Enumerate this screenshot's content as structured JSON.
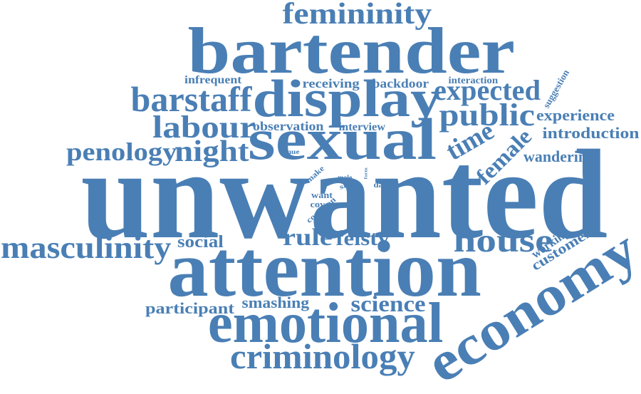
{
  "word_color": "#4a7fb5",
  "words": [
    {
      "id": "unwanted",
      "text": "unwanted"
    },
    {
      "id": "attention",
      "text": "attention"
    },
    {
      "id": "bartender",
      "text": "bartender"
    },
    {
      "id": "sexual",
      "text": "sexual"
    },
    {
      "id": "display",
      "text": "display"
    },
    {
      "id": "emotional",
      "text": "emotional"
    },
    {
      "id": "economy",
      "text": "economy"
    },
    {
      "id": "femininity",
      "text": "femininity"
    },
    {
      "id": "barstaff",
      "text": "barstaff"
    },
    {
      "id": "labour",
      "text": "labour"
    },
    {
      "id": "public",
      "text": "public"
    },
    {
      "id": "expected",
      "text": "expected"
    },
    {
      "id": "house",
      "text": "house"
    },
    {
      "id": "masculinity",
      "text": "masculinity"
    },
    {
      "id": "criminology",
      "text": "criminology"
    },
    {
      "id": "penology",
      "text": "penology"
    },
    {
      "id": "night",
      "text": "night"
    },
    {
      "id": "time",
      "text": "time"
    },
    {
      "id": "female",
      "text": "female"
    },
    {
      "id": "rule",
      "text": "rule"
    },
    {
      "id": "feisty",
      "text": "feisty"
    },
    {
      "id": "science",
      "text": "science"
    },
    {
      "id": "social",
      "text": "social"
    },
    {
      "id": "participant",
      "text": "participant"
    },
    {
      "id": "smashing",
      "text": "smashing"
    },
    {
      "id": "experience",
      "text": "experience"
    },
    {
      "id": "introduction",
      "text": "introduction"
    },
    {
      "id": "wandering",
      "text": "wandering"
    },
    {
      "id": "customer",
      "text": "customer"
    },
    {
      "id": "working",
      "text": "working"
    },
    {
      "id": "receiving",
      "text": "receiving"
    },
    {
      "id": "backdoor",
      "text": "backdoor"
    },
    {
      "id": "infrequent",
      "text": "infrequent"
    },
    {
      "id": "interaction",
      "text": "interaction"
    },
    {
      "id": "suggestion",
      "text": "suggestion"
    },
    {
      "id": "observation",
      "text": "observation"
    },
    {
      "id": "interview",
      "text": "interview"
    },
    {
      "id": "venue",
      "text": "venue"
    },
    {
      "id": "make",
      "text": "make"
    },
    {
      "id": "male",
      "text": "male"
    },
    {
      "id": "form",
      "text": "form"
    },
    {
      "id": "shut",
      "text": "shut"
    },
    {
      "id": "data",
      "text": "data"
    },
    {
      "id": "want",
      "text": "want"
    },
    {
      "id": "cover",
      "text": "cover"
    },
    {
      "id": "common",
      "text": "common"
    },
    {
      "id": "strategies",
      "text": "strategies"
    }
  ]
}
